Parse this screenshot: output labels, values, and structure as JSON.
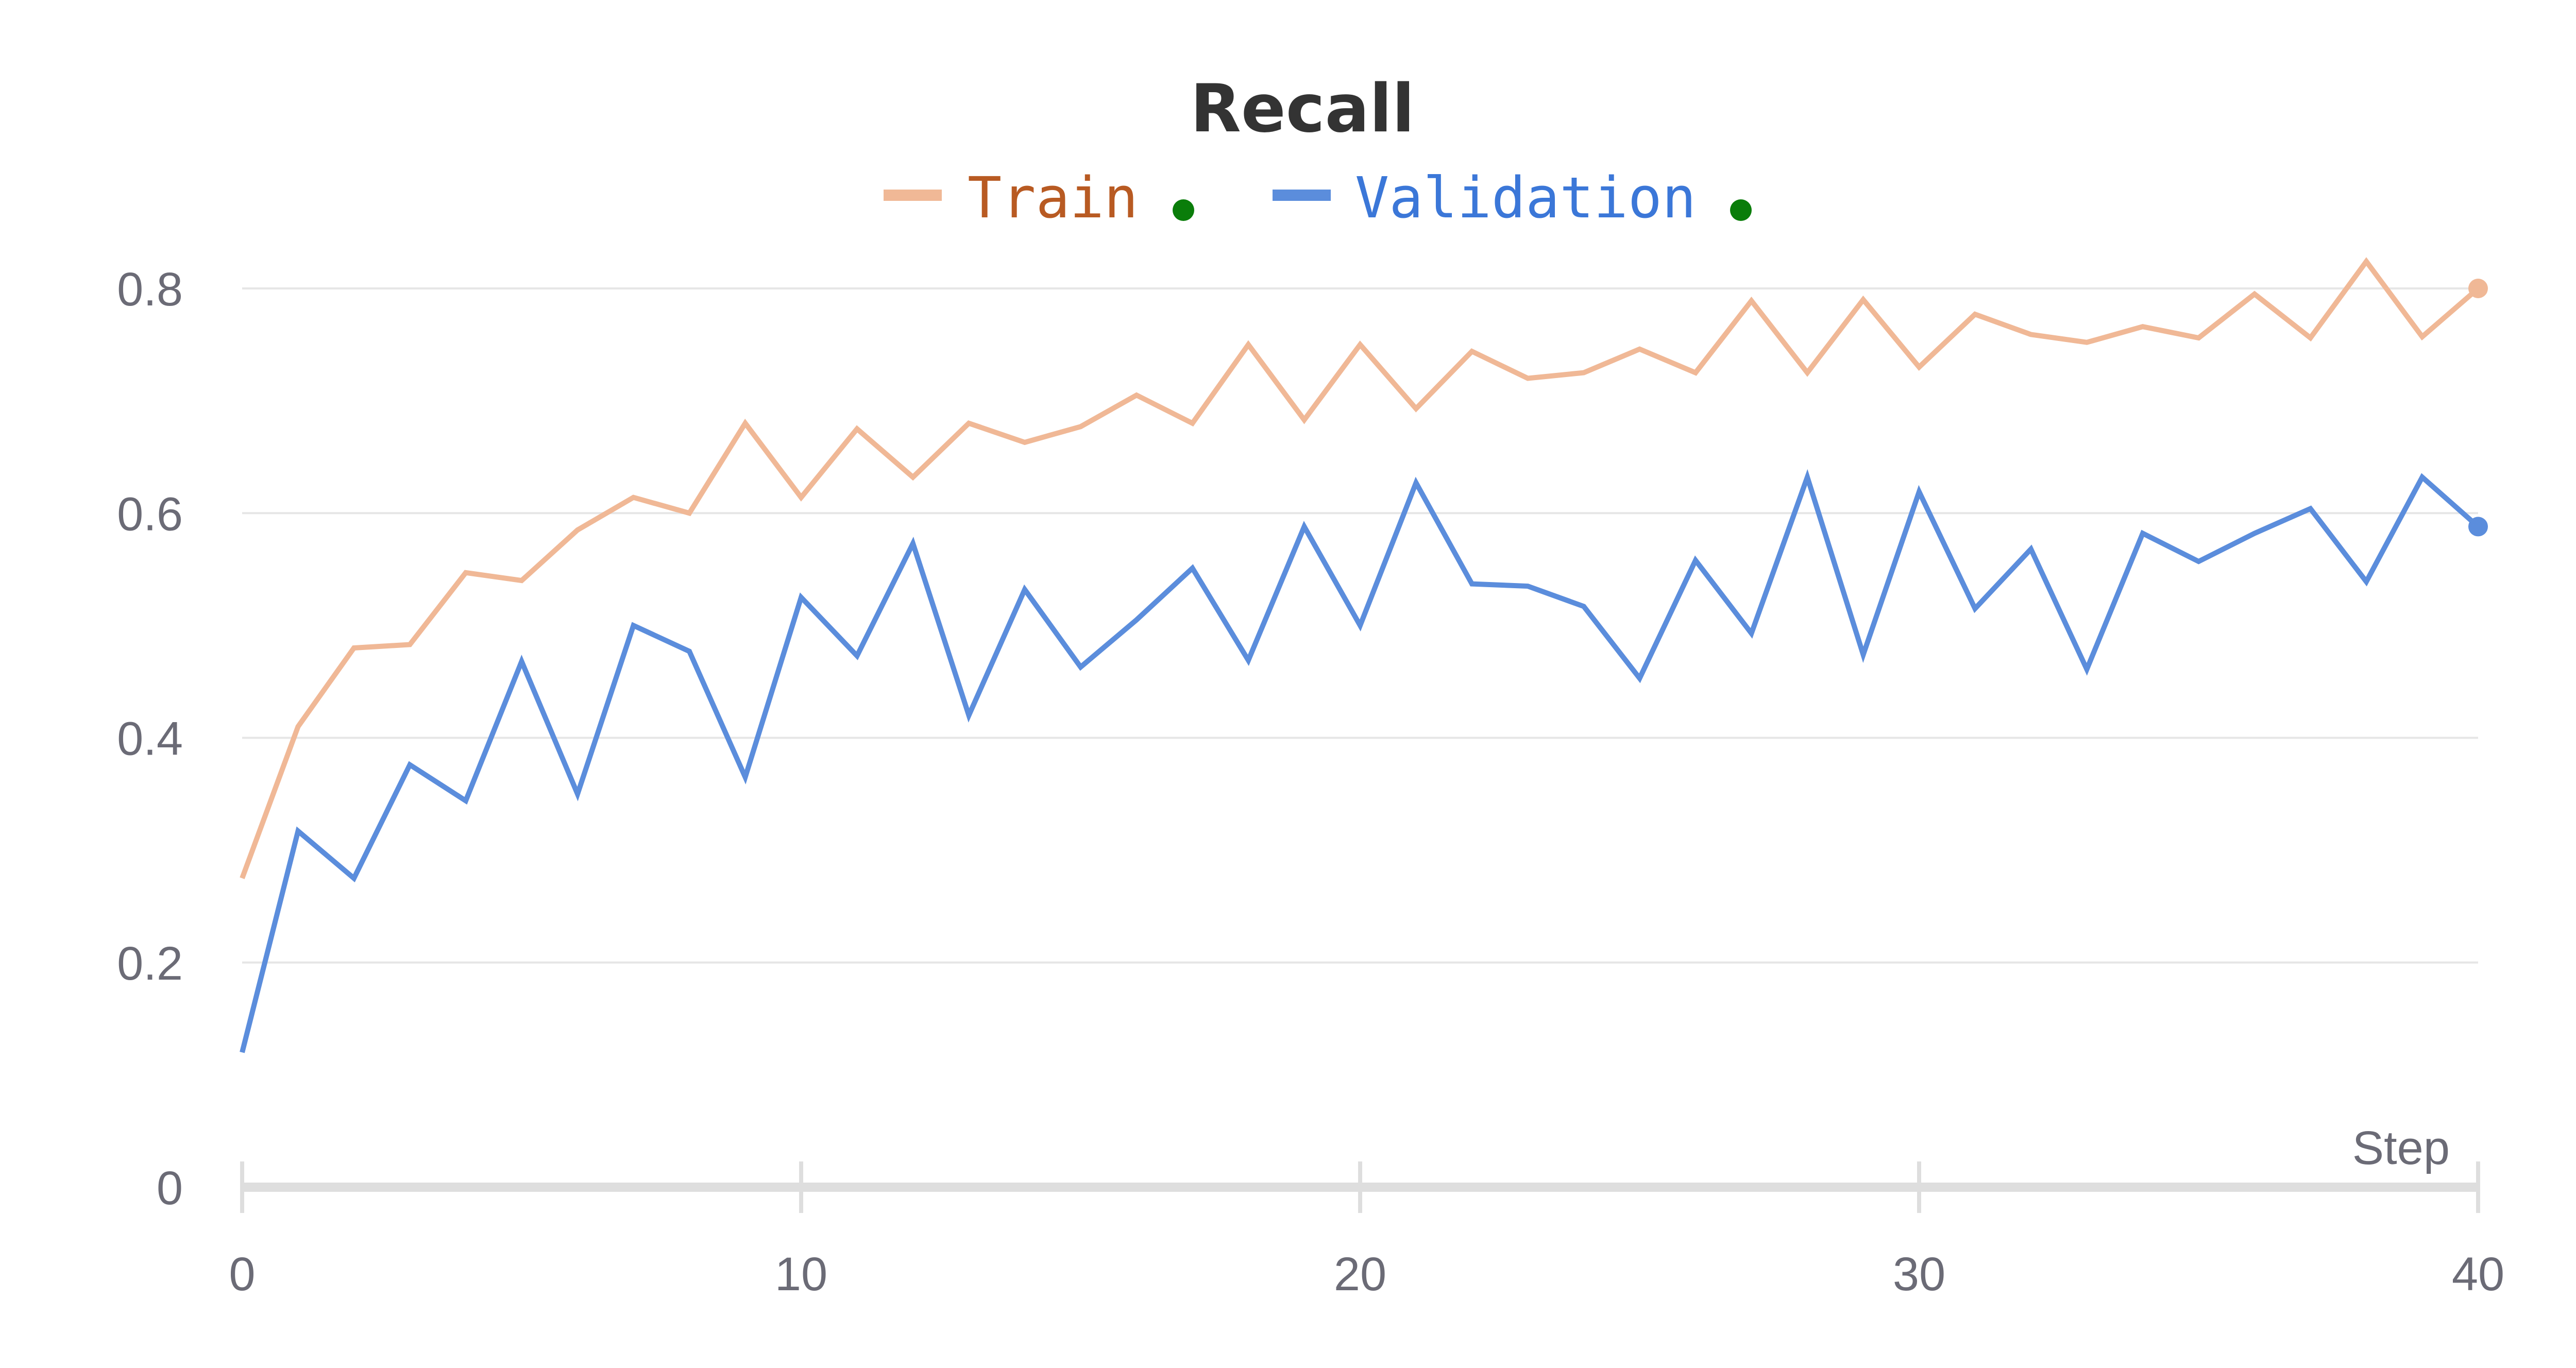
{
  "chart_data": {
    "type": "line",
    "title": "Recall",
    "xlabel": "Step",
    "ylabel": "",
    "xlim": [
      0,
      40
    ],
    "ylim": [
      0,
      0.8
    ],
    "x_ticks": [
      0,
      10,
      20,
      30,
      40
    ],
    "y_ticks": [
      0,
      0.2,
      0.4,
      0.6,
      0.8
    ],
    "y_tick_labels": [
      "0",
      "0.2",
      "0.4",
      "0.6",
      "0.8"
    ],
    "x_tick_labels": [
      "0",
      "10",
      "20",
      "30",
      "40"
    ],
    "grid": "horizontal",
    "legend_position": "top-center",
    "x": [
      0,
      1,
      2,
      3,
      4,
      5,
      6,
      7,
      8,
      9,
      10,
      11,
      12,
      13,
      14,
      15,
      16,
      17,
      18,
      19,
      20,
      21,
      22,
      23,
      24,
      25,
      26,
      27,
      28,
      29,
      30,
      31,
      32,
      33,
      34,
      35,
      36,
      37,
      38,
      39,
      40
    ],
    "series": [
      {
        "name": "Train",
        "color": "#f0b896",
        "label_color": "#b85a22",
        "status_dot_color": "#0a7d0a",
        "values": [
          0.275,
          0.41,
          0.48,
          0.483,
          0.547,
          0.54,
          0.585,
          0.614,
          0.6,
          0.68,
          0.614,
          0.675,
          0.632,
          0.68,
          0.663,
          0.677,
          0.705,
          0.68,
          0.75,
          0.683,
          0.75,
          0.693,
          0.744,
          0.72,
          0.725,
          0.746,
          0.725,
          0.789,
          0.725,
          0.79,
          0.73,
          0.777,
          0.759,
          0.752,
          0.766,
          0.756,
          0.795,
          0.756,
          0.824,
          0.757,
          0.8
        ]
      },
      {
        "name": "Validation",
        "color": "#5b8ddc",
        "label_color": "#3b77d8",
        "status_dot_color": "#0a7d0a",
        "values": [
          0.12,
          0.317,
          0.275,
          0.376,
          0.344,
          0.468,
          0.35,
          0.5,
          0.477,
          0.365,
          0.525,
          0.473,
          0.573,
          0.42,
          0.532,
          0.463,
          0.505,
          0.551,
          0.469,
          0.588,
          0.5,
          0.627,
          0.537,
          0.535,
          0.517,
          0.453,
          0.558,
          0.493,
          0.632,
          0.474,
          0.619,
          0.515,
          0.568,
          0.461,
          0.582,
          0.557,
          0.582,
          0.604,
          0.539,
          0.632,
          0.588
        ]
      }
    ]
  }
}
